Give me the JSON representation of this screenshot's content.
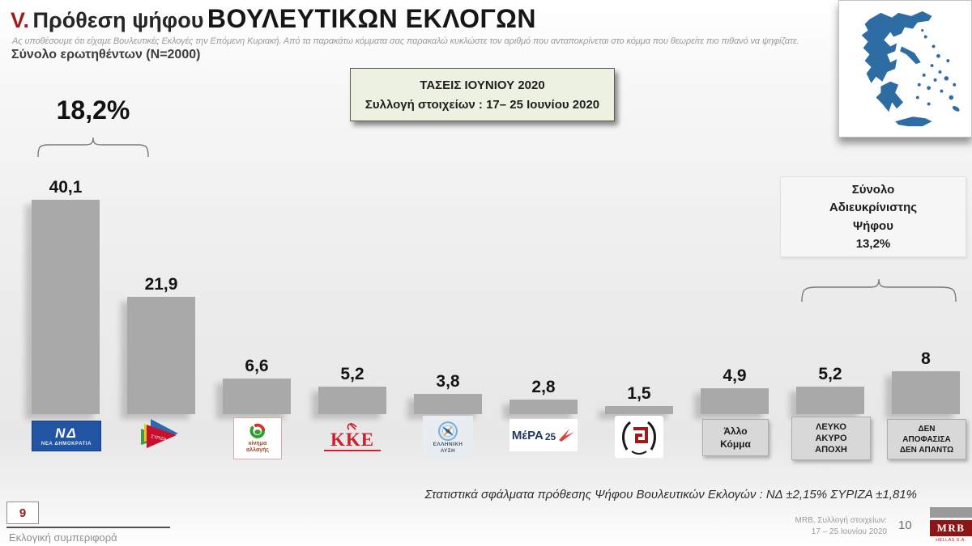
{
  "header": {
    "section_number": "V.",
    "title_lead": "Πρόθεση ψήφου",
    "title_emphasis": "ΒΟΥΛΕΥΤΙΚΩΝ ΕΚΛΟΓΩΝ",
    "question": "Ας υποθέσουμε ότι είχαμε Βουλευτικές Εκλογές την Επόμενη Κυριακή. Από τα παρακάτω κόμματα σας παρακαλώ κυκλώστε τον αριθμό που ανταποκρίνεται στο κόμμα που θεωρείτε πιο πιθανό να ψηφίζατε.",
    "sample_note": "Σύνολο ερωτηθέντων (N=2000)"
  },
  "trends_box": {
    "title": "ΤΑΣΕΙΣ ΙΟΥΝΙΟΥ 2020",
    "subtitle": "Συλλογή στοιχείων : 17– 25 Ιουνίου 2020",
    "background_color": "#edf1e1"
  },
  "map": {
    "label": "greece-map",
    "fill_color": "#2e6da4"
  },
  "annotations": {
    "lead_gap_value": "18,2%",
    "undecided": {
      "line1": "Σύνολο",
      "line2": "Αδιευκρίνιστης",
      "line3": "Ψήφου",
      "line4": "13,2%"
    }
  },
  "chart_data": {
    "type": "bar",
    "title": "Πρόθεση ψήφου Βουλευτικών Εκλογών — ΤΑΣΕΙΣ ΙΟΥΝΙΟΥ 2020",
    "categories": [
      "ΝΕΑ ΔΗΜΟΚΡΑΤΙΑ",
      "ΣΥΡΙΖΑ",
      "ΚΙΝΗΜΑ ΑΛΛΑΓΗΣ",
      "ΚΚΕ",
      "ΕΛΛΗΝΙΚΗ ΛΥΣΗ",
      "ΜέΡΑ25",
      "ΧΡΥΣΗ ΑΥΓΗ",
      "Άλλο Κόμμα",
      "ΛΕΥΚΟ ΑΚΥΡΟ ΑΠΟΧΗ",
      "ΔΕΝ ΑΠΟΦΑΣΙΣΑ ΔΕΝ ΑΠΑΝΤΩ"
    ],
    "values": [
      40.1,
      21.9,
      6.6,
      5.2,
      3.8,
      2.8,
      1.5,
      4.9,
      5.2,
      8
    ],
    "value_labels": [
      "40,1",
      "21,9",
      "6,6",
      "5,2",
      "3,8",
      "2,8",
      "1,5",
      "4,9",
      "5,2",
      "8"
    ],
    "bar_color": "#a9a9a9",
    "ylim": [
      0,
      42
    ],
    "grid": false,
    "legend": false,
    "annotations": [
      {
        "text": "18,2%",
        "note": "brace over bars 1-2"
      },
      {
        "text": "Σύνολο Αδιευκρίνιστης Ψήφου 13,2%",
        "note": "brace over bars 9-10"
      }
    ]
  },
  "logos": {
    "nd": {
      "monogram": "ΝΔ",
      "caption": "ΝΕΑ ΔΗΜΟΚΡΑΤΙΑ"
    },
    "syriza": {
      "caption": "ΣΥΡΙΖΑ"
    },
    "kinal": {
      "caption_line1": "κίνημα",
      "caption_line2": "αλλαγής"
    },
    "kke": {
      "caption": "KKE"
    },
    "elliniki_lysi": {
      "caption_line1": "ΕΛΛΗΝΙΚΗ",
      "caption_line2": "ΛΥΣΗ"
    },
    "mera25": {
      "caption_main": "ΜέΡΑ",
      "caption_num": "25"
    }
  },
  "label_boxes": {
    "other": {
      "line1": "Άλλο",
      "line2": "Κόμμα"
    },
    "blank": {
      "line1": "ΛΕΥΚΟ",
      "line2": "ΑΚΥΡΟ",
      "line3": "ΑΠΟΧΗ"
    },
    "dk": {
      "line1": "ΔΕΝ",
      "line2": "ΑΠΟΦΑΣΙΣΑ",
      "line3": "ΔΕΝ ΑΠΑΝΤΩ"
    }
  },
  "footer": {
    "stats_note": "Στατιστικά σφάλματα πρόθεσης Ψήφου Βουλευτικών Εκλογών : ΝΔ ±2,15% ΣΥΡΙΖΑ ±1,81%",
    "slide_badge": "9",
    "section_label": "Εκλογική συμπεριφορά",
    "source_line1": "MRB, Συλλογή στοιχείων:",
    "source_line2": "17 – 25 Ιουνίου 2020",
    "page_number": "10",
    "mrb_logo_text": "MRB",
    "mrb_logo_subtext": "HELLAS S.A."
  }
}
